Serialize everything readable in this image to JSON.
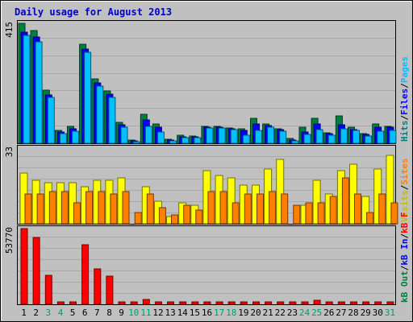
{
  "title": "Daily usage for August 2013",
  "colors": {
    "background": "#c0c0c0",
    "frame": "#000000",
    "title": "#0000c0",
    "hits": "#008040",
    "files": "#0000ff",
    "pages": "#00c0ff",
    "visits": "#ffff00",
    "sites": "#ff8000",
    "kb": "#ff0000",
    "weekend_day": "#00a060",
    "weekday": "#000000"
  },
  "panels": {
    "top": {
      "max_label": "415",
      "legend": [
        {
          "text": "Hits",
          "color": "#008080"
        },
        {
          "text": "/",
          "color": "#000000"
        },
        {
          "text": "Files",
          "color": "#0000ff"
        },
        {
          "text": "/",
          "color": "#000000"
        },
        {
          "text": "Pages",
          "color": "#00c0ff"
        }
      ]
    },
    "middle": {
      "max_label": "33",
      "legend": [
        {
          "text": "Visits",
          "color": "#c0c000"
        },
        {
          "text": "/",
          "color": "#000000"
        },
        {
          "text": "Sites",
          "color": "#ff8000"
        }
      ]
    },
    "bottom": {
      "max_label": "53770",
      "legend": [
        {
          "text": "kB Out",
          "color": "#008040"
        },
        {
          "text": "/",
          "color": "#000000"
        },
        {
          "text": "kB In",
          "color": "#0000ff"
        },
        {
          "text": "/",
          "color": "#000000"
        },
        {
          "text": "kB F",
          "color": "#ff0000"
        }
      ]
    }
  },
  "chart_data": {
    "type": "bar",
    "title": "Daily usage for August 2013",
    "categories": [
      "1",
      "2",
      "3",
      "4",
      "5",
      "6",
      "7",
      "8",
      "9",
      "10",
      "11",
      "12",
      "13",
      "14",
      "15",
      "16",
      "17",
      "18",
      "19",
      "20",
      "21",
      "22",
      "23",
      "24",
      "25",
      "26",
      "27",
      "28",
      "29",
      "30",
      "31"
    ],
    "weekend_days": [
      "3",
      "4",
      "10",
      "11",
      "17",
      "18",
      "24",
      "25",
      "31"
    ],
    "panels": [
      {
        "id": "top",
        "ylim": [
          0,
          415
        ],
        "series": [
          {
            "name": "Hits",
            "values": [
              415,
              389,
              184,
              45,
              58,
              343,
              223,
              180,
              73,
              10,
              100,
              66,
              13,
              28,
              25,
              58,
              58,
              52,
              50,
              85,
              66,
              50,
              17,
              55,
              85,
              37,
              96,
              55,
              33,
              66,
              58
            ]
          },
          {
            "name": "Files",
            "values": [
              385,
              367,
              167,
              40,
              50,
              325,
              210,
              169,
              64,
              8,
              82,
              55,
              12,
              22,
              22,
              55,
              55,
              50,
              44,
              66,
              60,
              48,
              12,
              40,
              66,
              33,
              63,
              48,
              30,
              55,
              55
            ]
          },
          {
            "name": "Pages",
            "values": [
              372,
              351,
              160,
              33,
              41,
              316,
              198,
              160,
              55,
              6,
              58,
              38,
              9,
              19,
              19,
              53,
              53,
              48,
              29,
              45,
              56,
              41,
              9,
              30,
              47,
              29,
              50,
              44,
              25,
              43,
              45
            ]
          }
        ]
      },
      {
        "id": "middle",
        "ylim": [
          0,
          33
        ],
        "series": [
          {
            "name": "Visits",
            "values": [
              22,
              19,
              18,
              18,
              18,
              16,
              19,
              19,
              20,
              0,
              16,
              10,
              3,
              9,
              8,
              23,
              21,
              20,
              17,
              17,
              24,
              28,
              0,
              8,
              19,
              13,
              23,
              26,
              12,
              24,
              30
            ]
          },
          {
            "name": "Sites",
            "values": [
              13,
              13,
              14,
              14,
              9,
              14,
              14,
              13,
              14,
              5,
              13,
              7,
              4,
              8,
              6,
              14,
              14,
              9,
              13,
              13,
              14,
              13,
              8,
              9,
              9,
              12,
              20,
              13,
              5,
              13,
              9
            ]
          }
        ]
      },
      {
        "id": "bottom",
        "ylim": [
          0,
          53770
        ],
        "series": [
          {
            "name": "kB F",
            "values": [
              53770,
              47200,
              20500,
              300,
              300,
              42600,
              25200,
              20000,
              1300,
              300,
              3400,
              1900,
              400,
              400,
              700,
              700,
              400,
              400,
              400,
              1300,
              500,
              400,
              400,
              400,
              2900,
              500,
              1600,
              900,
              500,
              1300,
              900
            ]
          }
        ]
      }
    ]
  }
}
